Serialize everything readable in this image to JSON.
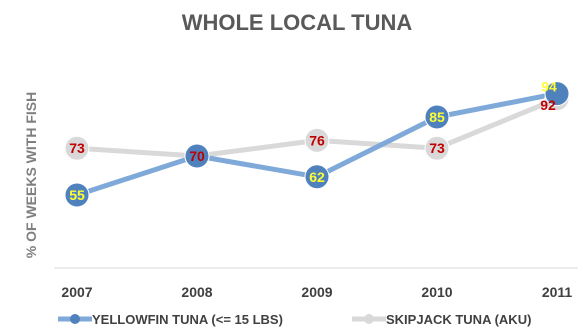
{
  "chart_data": {
    "type": "line",
    "title": "WHOLE LOCAL TUNA",
    "xlabel": "",
    "ylabel": "% OF WEEKS WITH FISH",
    "categories": [
      "2007",
      "2008",
      "2009",
      "2010",
      "2011"
    ],
    "ylim": [
      0,
      100
    ],
    "grid": false,
    "legend_position": "bottom",
    "series": [
      {
        "name": "YELLOWFIN TUNA (<= 15 LBS)",
        "values": [
          55,
          70,
          62,
          85,
          94
        ],
        "line_color": "#7fa9d8",
        "marker_color": "#4f81bd",
        "label_color": "#ffff33"
      },
      {
        "name": "SKIPJACK TUNA (AKU)",
        "values": [
          73,
          70,
          76,
          73,
          92
        ],
        "line_color": "#d9d9d9",
        "marker_color": "#d9d9d9",
        "label_color": "#c00000"
      }
    ]
  }
}
